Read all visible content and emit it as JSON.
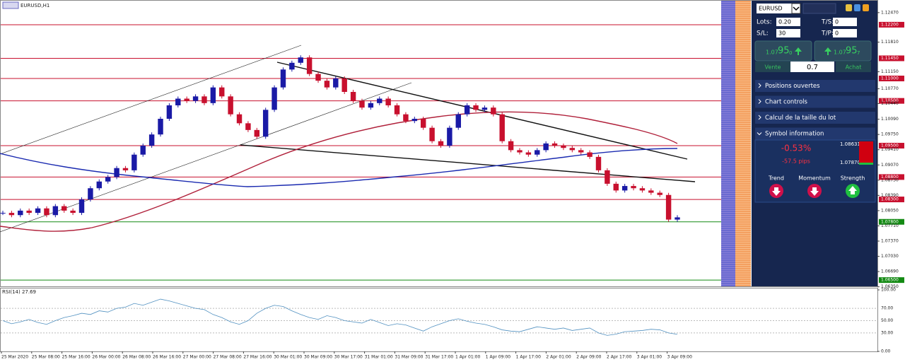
{
  "header": {
    "title": "EURUSD,H1"
  },
  "price_chart": {
    "ylim": [
      1.0636,
      1.1272
    ],
    "yticks": [
      {
        "value": 1.1247,
        "label": "1.12470"
      },
      {
        "value": 1.1181,
        "label": "1.11810"
      },
      {
        "value": 1.1115,
        "label": "1.11150"
      },
      {
        "value": 1.1077,
        "label": "1.10770"
      },
      {
        "value": 1.1044,
        "label": "1.10440"
      },
      {
        "value": 1.1009,
        "label": "1.10090"
      },
      {
        "value": 1.0975,
        "label": "1.09750"
      },
      {
        "value": 1.0941,
        "label": "1.09410"
      },
      {
        "value": 1.0907,
        "label": "1.09070"
      },
      {
        "value": 1.0873,
        "label": "1.08730"
      },
      {
        "value": 1.0839,
        "label": "1.08390"
      },
      {
        "value": 1.0805,
        "label": "1.08050"
      },
      {
        "value": 1.0771,
        "label": "1.07710"
      },
      {
        "value": 1.0737,
        "label": "1.07370"
      },
      {
        "value": 1.0703,
        "label": "1.07030"
      },
      {
        "value": 1.0669,
        "label": "1.06690"
      },
      {
        "value": 1.0635,
        "label": "1.06350"
      }
    ],
    "levels": [
      {
        "value": 1.122,
        "label": "1.12200",
        "color": "#c8102e"
      },
      {
        "value": 1.1145,
        "label": "1.11450",
        "color": "#c8102e"
      },
      {
        "value": 1.11,
        "label": "1.11000",
        "color": "#c8102e"
      },
      {
        "value": 1.105,
        "label": "1.10500",
        "color": "#c8102e"
      },
      {
        "value": 1.095,
        "label": "1.09500",
        "color": "#c8102e"
      },
      {
        "value": 1.088,
        "label": "1.08800",
        "color": "#c8102e"
      },
      {
        "value": 1.083,
        "label": "1.08300",
        "color": "#c8102e"
      },
      {
        "value": 1.078,
        "label": "1.07800",
        "color": "#138a13"
      },
      {
        "value": 1.065,
        "label": "1.06500",
        "color": "#138a13"
      }
    ],
    "up_color": "#1a1aa6",
    "down_color": "#c8102e",
    "closes": [
      1.08,
      1.0795,
      1.0805,
      1.08,
      1.081,
      1.0795,
      1.0815,
      1.0805,
      1.08,
      1.083,
      1.0855,
      1.087,
      1.088,
      1.09,
      1.0895,
      1.093,
      1.095,
      1.0975,
      1.101,
      1.104,
      1.1055,
      1.105,
      1.106,
      1.1045,
      1.108,
      1.106,
      1.102,
      1.1,
      1.0985,
      1.097,
      1.103,
      1.108,
      1.112,
      1.1135,
      1.1147,
      1.111,
      1.1095,
      1.108,
      1.11,
      1.107,
      1.105,
      1.1035,
      1.1045,
      1.1055,
      1.104,
      1.102,
      1.1005,
      1.101,
      1.099,
      1.096,
      1.095,
      1.099,
      1.102,
      1.104,
      1.103,
      1.1035,
      1.102,
      1.096,
      1.094,
      1.0935,
      1.093,
      1.094,
      1.0955,
      1.095,
      1.0945,
      1.094,
      1.0935,
      1.0925,
      1.0895,
      1.0865,
      1.085,
      1.086,
      1.0855,
      1.085,
      1.0845,
      1.084,
      1.0785,
      1.079
    ]
  },
  "rsi": {
    "label": "RSI(14) 27.69",
    "ylim": [
      0,
      100
    ],
    "yticks": [
      {
        "value": 100,
        "label": "100.00"
      },
      {
        "value": 70,
        "label": "70.00"
      },
      {
        "value": 50,
        "label": "50.00"
      },
      {
        "value": 30,
        "label": "30.00"
      },
      {
        "value": 0,
        "label": "0.00"
      }
    ],
    "values": [
      50,
      45,
      48,
      52,
      47,
      44,
      50,
      55,
      58,
      62,
      60,
      66,
      64,
      70,
      72,
      78,
      75,
      80,
      85,
      82,
      78,
      74,
      70,
      68,
      60,
      55,
      48,
      44,
      50,
      62,
      70,
      75,
      73,
      66,
      60,
      55,
      52,
      58,
      55,
      50,
      48,
      46,
      52,
      47,
      42,
      45,
      43,
      38,
      33,
      40,
      45,
      50,
      53,
      49,
      46,
      44,
      40,
      35,
      33,
      32,
      36,
      40,
      38,
      36,
      38,
      34,
      36,
      38,
      30,
      26,
      28,
      32,
      33,
      34,
      36,
      35,
      30,
      27.69
    ]
  },
  "time_axis": [
    "25 Mar 2020",
    "25 Mar 08:00",
    "25 Mar 16:00",
    "26 Mar 00:00",
    "26 Mar 08:00",
    "26 Mar 16:00",
    "27 Mar 00:00",
    "27 Mar 08:00",
    "27 Mar 16:00",
    "30 Mar 01:00",
    "30 Mar 09:00",
    "30 Mar 17:00",
    "31 Mar 01:00",
    "31 Mar 09:00",
    "31 Mar 17:00",
    "1 Apr 01:00",
    "1 Apr 09:00",
    "1 Apr 17:00",
    "2 Apr 01:00",
    "2 Apr 09:00",
    "2 Apr 17:00",
    "3 Apr 01:00",
    "3 Apr 09:00"
  ],
  "panel": {
    "symbol": "EURUSD",
    "lots_label": "Lots:",
    "lots": "0.20",
    "ts_label": "T/S:",
    "ts": "0",
    "sl_label": "S/L:",
    "sl": "30",
    "tp_label": "T/P:",
    "tp": "0",
    "sell": {
      "big": "1.07",
      "pips": "95",
      "frac": "0",
      "label": "Vente"
    },
    "buy": {
      "big": "1.07",
      "pips": "95",
      "frac": "7",
      "label": "Achat"
    },
    "spread": "0.7",
    "sections": [
      "Positions ouvertes",
      "Chart controls",
      "Calcul de la taille du lot",
      "Symbol information"
    ],
    "change": "-0.53%",
    "pips": "-57.5 pips",
    "high": "1.08631",
    "low": "1.07870",
    "indicators": [
      "Trend",
      "Momentum",
      "Strength"
    ]
  }
}
